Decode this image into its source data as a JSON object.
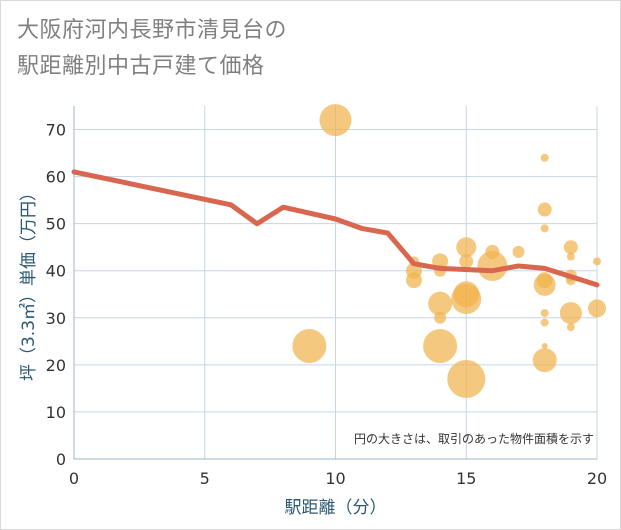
{
  "chart_data": {
    "type": "scatter",
    "title_lines": [
      "大阪府河内長野市清見台の",
      "駅距離別中古戸建て価格"
    ],
    "xlabel": "駅距離（分）",
    "ylabel": "坪（3.3㎡）単価（万円）",
    "xlim": [
      0,
      20
    ],
    "ylim": [
      0,
      75
    ],
    "xticks": [
      0,
      5,
      10,
      15,
      20
    ],
    "yticks": [
      0,
      10,
      20,
      30,
      40,
      50,
      60,
      70
    ],
    "note": "円の大きさは、取引のあった物件面積を示す",
    "colors": {
      "bubble": "#f1b049",
      "line": "#d9664e",
      "grid": "#c5d6e5",
      "axis_text": "#2a5872"
    },
    "trend_line": {
      "x": [
        0,
        6,
        7,
        8,
        10,
        11,
        12,
        13,
        14,
        16,
        17,
        18,
        20
      ],
      "y": [
        61,
        54,
        50,
        53.5,
        51,
        49,
        48,
        41.5,
        40.5,
        40,
        41,
        40.5,
        37
      ]
    },
    "points": [
      {
        "x": 10,
        "y": 72,
        "size": 16
      },
      {
        "x": 9,
        "y": 24,
        "size": 17
      },
      {
        "x": 13,
        "y": 40,
        "size": 8
      },
      {
        "x": 13,
        "y": 38,
        "size": 8
      },
      {
        "x": 13,
        "y": 42,
        "size": 5
      },
      {
        "x": 14,
        "y": 42,
        "size": 8
      },
      {
        "x": 14,
        "y": 40,
        "size": 6
      },
      {
        "x": 14,
        "y": 33,
        "size": 12
      },
      {
        "x": 14,
        "y": 30,
        "size": 6
      },
      {
        "x": 14,
        "y": 24,
        "size": 17
      },
      {
        "x": 15,
        "y": 45,
        "size": 10
      },
      {
        "x": 15,
        "y": 42,
        "size": 7
      },
      {
        "x": 15,
        "y": 35,
        "size": 13
      },
      {
        "x": 15,
        "y": 34,
        "size": 15
      },
      {
        "x": 15,
        "y": 17,
        "size": 19
      },
      {
        "x": 16,
        "y": 44,
        "size": 7
      },
      {
        "x": 16,
        "y": 41,
        "size": 15
      },
      {
        "x": 17,
        "y": 44,
        "size": 6
      },
      {
        "x": 18,
        "y": 64,
        "size": 4
      },
      {
        "x": 18,
        "y": 53,
        "size": 7
      },
      {
        "x": 18,
        "y": 49,
        "size": 4
      },
      {
        "x": 18,
        "y": 38,
        "size": 8
      },
      {
        "x": 18,
        "y": 37,
        "size": 11
      },
      {
        "x": 18,
        "y": 31,
        "size": 4
      },
      {
        "x": 18,
        "y": 29,
        "size": 4
      },
      {
        "x": 18,
        "y": 24,
        "size": 3
      },
      {
        "x": 18,
        "y": 21,
        "size": 12
      },
      {
        "x": 19,
        "y": 45,
        "size": 7
      },
      {
        "x": 19,
        "y": 43,
        "size": 4
      },
      {
        "x": 19,
        "y": 39,
        "size": 6
      },
      {
        "x": 19,
        "y": 38,
        "size": 5
      },
      {
        "x": 19,
        "y": 31,
        "size": 11
      },
      {
        "x": 19,
        "y": 28,
        "size": 4
      },
      {
        "x": 20,
        "y": 42,
        "size": 4
      },
      {
        "x": 20,
        "y": 32,
        "size": 9
      }
    ]
  }
}
